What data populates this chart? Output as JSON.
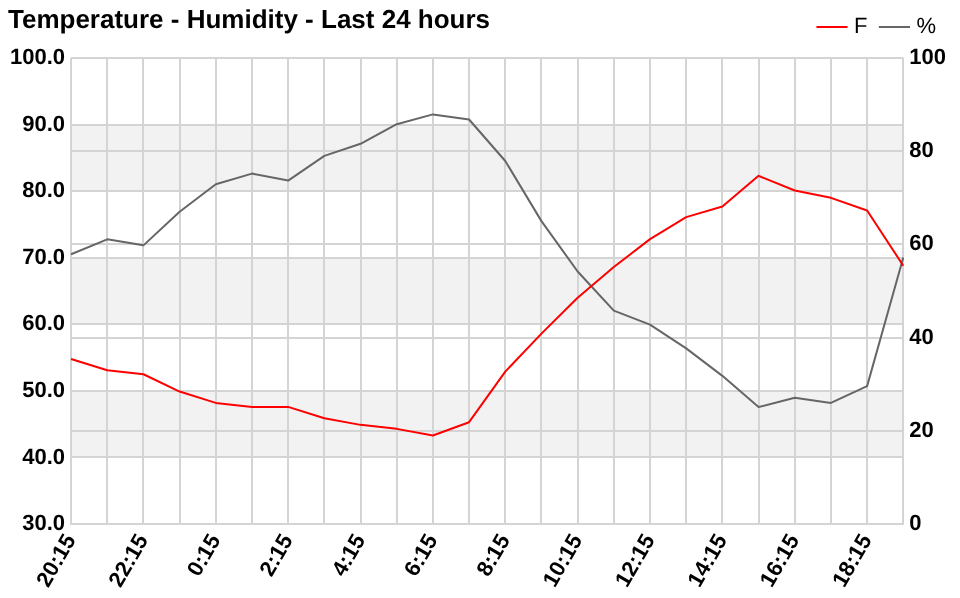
{
  "chart_data": {
    "type": "line",
    "title": "Temperature - Humidity - Last 24 hours",
    "categories": [
      "20:15",
      null,
      "22:15",
      null,
      "0:15",
      null,
      "2:15",
      null,
      "4:15",
      null,
      "6:15",
      null,
      "8:15",
      null,
      "10:15",
      null,
      "12:15",
      null,
      "14:15",
      null,
      "16:15",
      null,
      "18:15",
      null
    ],
    "series": [
      {
        "name": "F",
        "color": "#ff0000",
        "values": [
          54.8,
          53.1,
          52.5,
          49.9,
          48.2,
          47.6,
          47.6,
          45.9,
          44.9,
          44.3,
          43.3,
          45.3,
          52.9,
          58.6,
          64.0,
          68.6,
          72.8,
          76.1,
          77.7,
          82.3,
          80.1,
          79.0,
          77.1,
          68.8
        ]
      },
      {
        "name": "%",
        "color": "#666666",
        "axis": "y2",
        "values": [
          57.9,
          61.1,
          59.8,
          67.0,
          72.9,
          75.2,
          73.7,
          79.0,
          81.6,
          85.8,
          87.9,
          86.8,
          77.9,
          65.0,
          54.2,
          45.8,
          42.8,
          37.7,
          31.8,
          25.1,
          27.1,
          26.0,
          29.6,
          57.2
        ]
      }
    ],
    "ylim": [
      30,
      100
    ],
    "yticks": [
      {
        "value": 30,
        "label": "30.0"
      },
      {
        "value": 40,
        "label": "40.0"
      },
      {
        "value": 50,
        "label": "50.0"
      },
      {
        "value": 60,
        "label": "60.0"
      },
      {
        "value": 70,
        "label": "70.0"
      },
      {
        "value": 80,
        "label": "80.0"
      },
      {
        "value": 90,
        "label": "90.0"
      },
      {
        "value": 100,
        "label": "100.0"
      }
    ],
    "y2lim": [
      0,
      100
    ],
    "y2ticks": [
      0,
      20,
      40,
      60,
      80,
      100
    ],
    "bands": [
      {
        "axis": "y",
        "from": 40,
        "to": 50,
        "color": "#f2f2f2"
      },
      {
        "axis": "y",
        "from": 60,
        "to": 70,
        "color": "#f2f2f2"
      },
      {
        "axis": "y",
        "from": 80,
        "to": 90,
        "color": "#f2f2f2"
      }
    ],
    "grid": true,
    "legend": "top right",
    "marker": "none",
    "line_style": "solid"
  }
}
